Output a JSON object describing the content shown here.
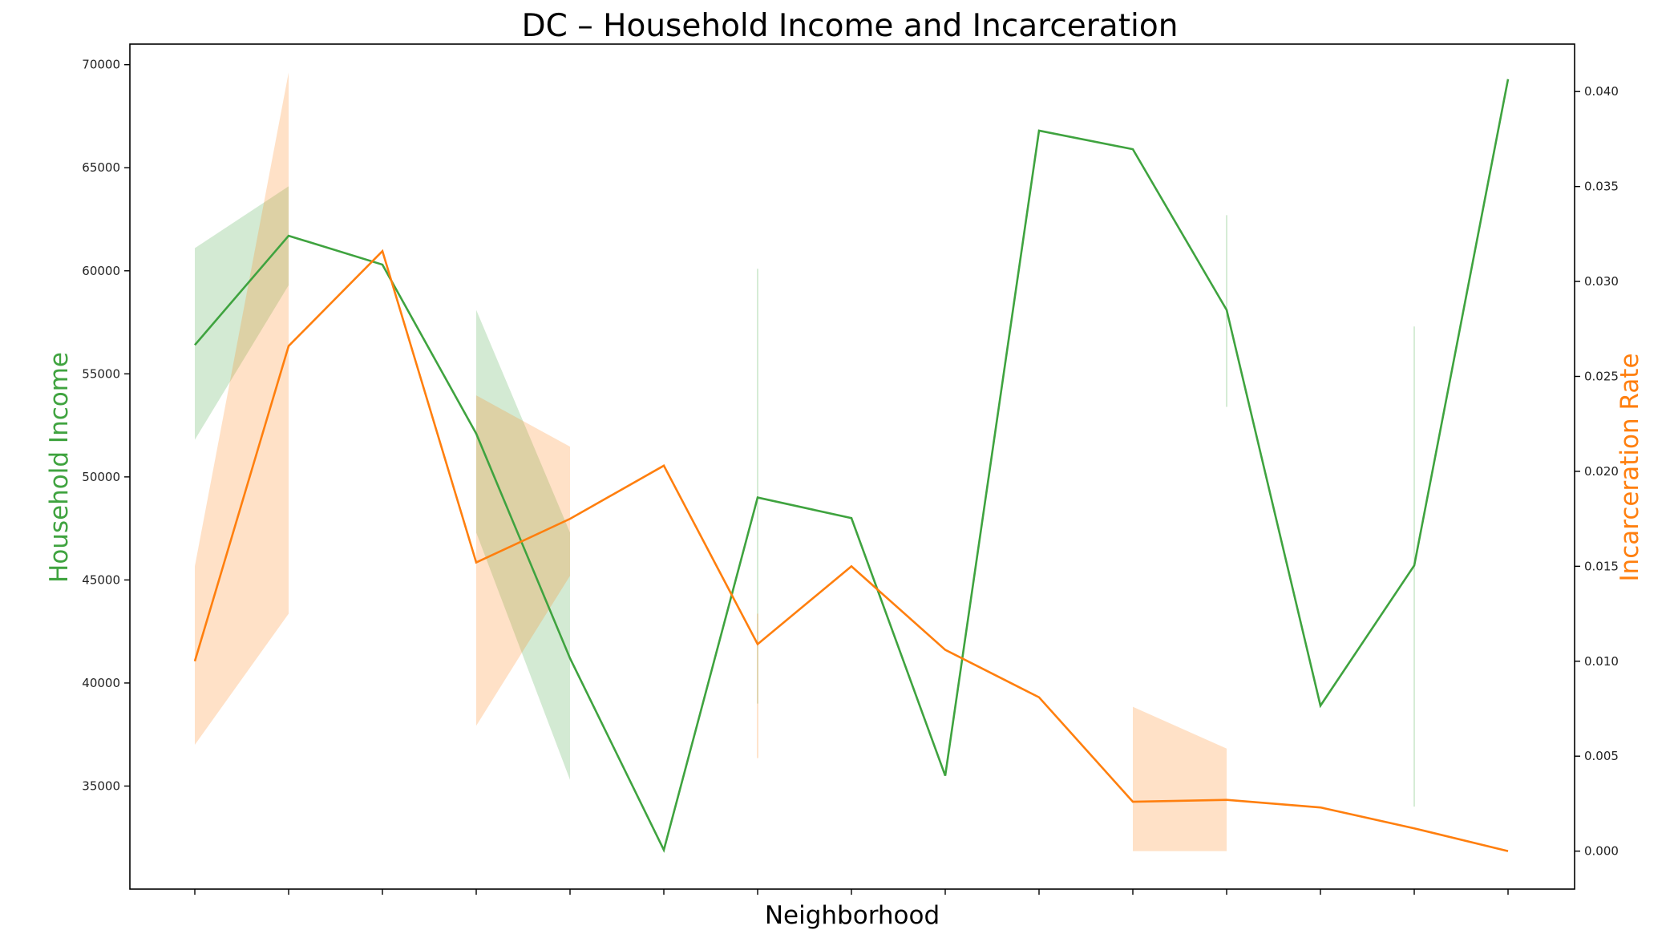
{
  "chart_data": {
    "type": "line",
    "title": "DC – Household Income and Incarceration",
    "xlabel": "Neighborhood",
    "ylabel": "Household Income",
    "ylabel_right": "Incarceration Rate",
    "categories_count": 15,
    "x_tick_labels_visible": false,
    "colors": {
      "income": "#3fa33f",
      "incarceration": "#ff7f0e"
    },
    "y_left": {
      "lim": [
        30000,
        71000
      ],
      "ticks": [
        35000,
        40000,
        45000,
        50000,
        55000,
        60000,
        65000,
        70000
      ],
      "tick_labels": [
        "35000",
        "40000",
        "45000",
        "50000",
        "55000",
        "60000",
        "65000",
        "70000"
      ]
    },
    "y_right": {
      "lim": [
        -0.002,
        0.0425
      ],
      "ticks": [
        0.0,
        0.005,
        0.01,
        0.015,
        0.02,
        0.025,
        0.03,
        0.035,
        0.04
      ],
      "tick_labels": [
        "0.000",
        "0.005",
        "0.010",
        "0.015",
        "0.020",
        "0.025",
        "0.030",
        "0.035",
        "0.040"
      ]
    },
    "series": [
      {
        "name": "Household Income",
        "axis": "left",
        "values": [
          56400,
          61700,
          60300,
          52100,
          41200,
          31900,
          49000,
          48000,
          35500,
          66800,
          65900,
          58100,
          38900,
          45700,
          69300
        ],
        "ci_bands": [
          {
            "x_start": 0,
            "x_end": 1,
            "lower": [
              51800,
              59300
            ],
            "upper": [
              61100,
              64100
            ]
          },
          {
            "x_start": 3,
            "x_end": 4,
            "lower": [
              47300,
              35300
            ],
            "upper": [
              58100,
              47300
            ]
          },
          {
            "x_start": 6,
            "x_end": 6,
            "lower": [
              39000
            ],
            "upper": [
              60100
            ]
          },
          {
            "x_start": 11,
            "x_end": 11,
            "lower": [
              53400
            ],
            "upper": [
              62700
            ]
          },
          {
            "x_start": 13,
            "x_end": 13,
            "lower": [
              34000
            ],
            "upper": [
              57300
            ]
          }
        ]
      },
      {
        "name": "Incarceration Rate",
        "axis": "right",
        "values": [
          0.01,
          0.0266,
          0.0316,
          0.0152,
          0.0175,
          0.0203,
          0.0109,
          0.015,
          0.0106,
          0.0081,
          0.0026,
          0.0027,
          0.0023,
          0.0012,
          0.0
        ],
        "ci_bands": [
          {
            "x_start": 0,
            "x_end": 1,
            "lower": [
              0.0056,
              0.0125
            ],
            "upper": [
              0.015,
              0.041
            ]
          },
          {
            "x_start": 3,
            "x_end": 4,
            "lower": [
              0.0066,
              0.0145
            ],
            "upper": [
              0.024,
              0.0213
            ]
          },
          {
            "x_start": 6,
            "x_end": 6,
            "lower": [
              0.0049
            ],
            "upper": [
              0.0125
            ]
          },
          {
            "x_start": 10,
            "x_end": 11,
            "lower": [
              0.0,
              0.0
            ],
            "upper": [
              0.0076,
              0.0054
            ]
          }
        ]
      }
    ]
  }
}
